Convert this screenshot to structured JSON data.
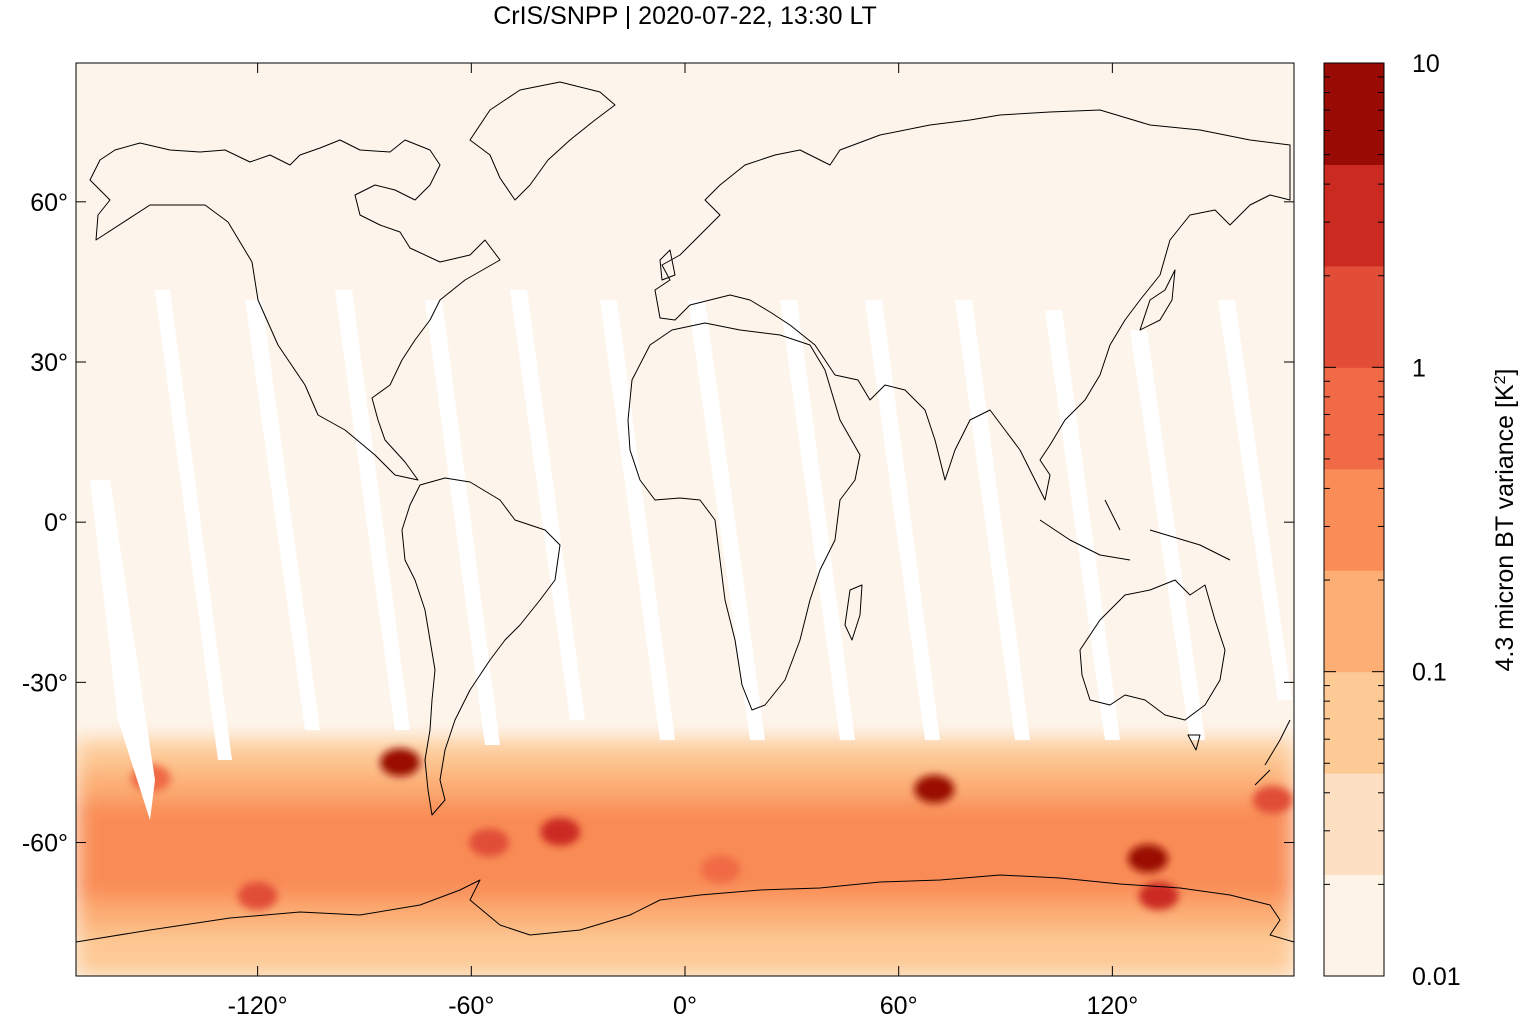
{
  "title": "CrIS/SNPP | 2020-07-22, 13:30 LT",
  "colors": {
    "background": "#fdf5eb",
    "coastline": "#000000",
    "swath_gap": "#ffffff",
    "colorbar": [
      "#fdf3e7",
      "#fde0c2",
      "#fdc995",
      "#fcae74",
      "#f98c57",
      "#f06a45",
      "#e14d37",
      "#cb2a20",
      "#9a0b06"
    ]
  },
  "map": {
    "projection": "equirectangular",
    "lon_range": [
      -171,
      171
    ],
    "lat_range": [
      -85,
      86
    ],
    "lon_ticks": [
      {
        "value": -120,
        "label": "-120°"
      },
      {
        "value": -60,
        "label": "-60°"
      },
      {
        "value": 0,
        "label": "0°"
      },
      {
        "value": 60,
        "label": "60°"
      },
      {
        "value": 120,
        "label": "120°"
      }
    ],
    "lat_ticks": [
      {
        "value": 60,
        "label": "60°"
      },
      {
        "value": 30,
        "label": "30°"
      },
      {
        "value": 0,
        "label": "0°"
      },
      {
        "value": -30,
        "label": "-30°"
      },
      {
        "value": -60,
        "label": "-60°"
      }
    ]
  },
  "colorbar": {
    "label": "4.3 micron BT variance [K",
    "label_superscript": "2",
    "label_close": "]",
    "scale": "log",
    "range": [
      0.01,
      10
    ],
    "ticks": [
      {
        "value": 10,
        "label": "10"
      },
      {
        "value": 1,
        "label": "1"
      },
      {
        "value": 0.1,
        "label": "0.1"
      },
      {
        "value": 0.01,
        "label": "0.01"
      }
    ]
  },
  "hotspots": [
    {
      "lon": -80,
      "lat": -45,
      "level": 8
    },
    {
      "lon": -55,
      "lat": -60,
      "level": 6
    },
    {
      "lon": -35,
      "lat": -58,
      "level": 7
    },
    {
      "lon": -120,
      "lat": -70,
      "level": 6
    },
    {
      "lon": 130,
      "lat": -63,
      "level": 8
    },
    {
      "lon": 133,
      "lat": -70,
      "level": 7
    },
    {
      "lon": 165,
      "lat": -52,
      "level": 6
    },
    {
      "lon": 70,
      "lat": -50,
      "level": 8
    },
    {
      "lon": 10,
      "lat": -65,
      "level": 5
    },
    {
      "lon": -150,
      "lat": -48,
      "level": 5
    }
  ]
}
